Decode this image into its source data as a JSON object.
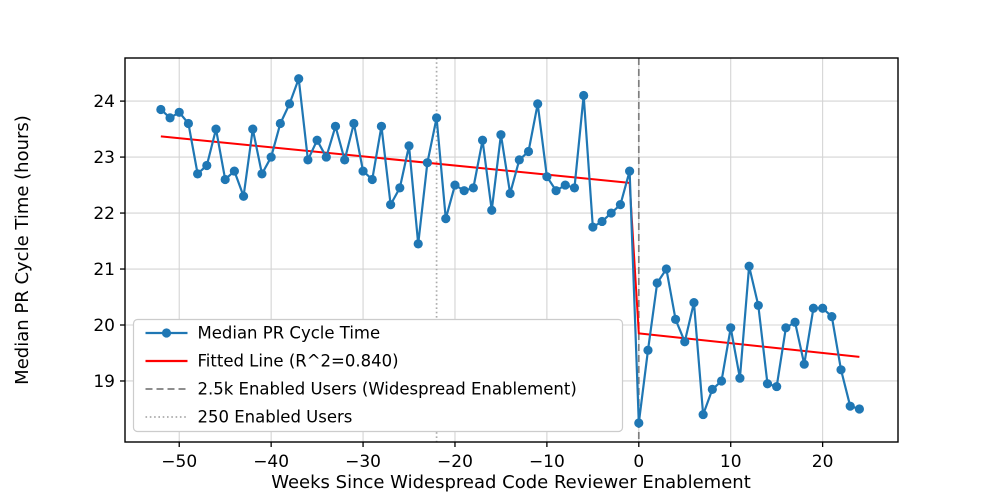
{
  "figure": {
    "background": "#ffffff",
    "title": ""
  },
  "chart_data": {
    "type": "line",
    "title": "",
    "xlabel": "Weeks Since Widespread Code Reviewer Enablement",
    "ylabel": "Median PR Cycle Time (hours)",
    "xlim": [
      -55.9,
      28.2
    ],
    "ylim": [
      17.91,
      24.77
    ],
    "x_ticks": [
      -50,
      -40,
      -30,
      -20,
      -10,
      0,
      10,
      20
    ],
    "x_tick_labels": [
      "−50",
      "−40",
      "−30",
      "−20",
      "−10",
      "0",
      "10",
      "20"
    ],
    "y_ticks": [
      19,
      20,
      21,
      22,
      23,
      24
    ],
    "y_tick_labels": [
      "19",
      "20",
      "21",
      "22",
      "23",
      "24"
    ],
    "grid": true,
    "grid_color": "#d4d4d4",
    "series": [
      {
        "name": "Median PR Cycle Time",
        "color": "#1f77b4",
        "marker": "circle",
        "linewidth": 2.2,
        "x": [
          -52,
          -51,
          -50,
          -49,
          -48,
          -47,
          -46,
          -45,
          -44,
          -43,
          -42,
          -41,
          -40,
          -39,
          -38,
          -37,
          -36,
          -35,
          -34,
          -33,
          -32,
          -31,
          -30,
          -29,
          -28,
          -27,
          -26,
          -25,
          -24,
          -23,
          -22,
          -21,
          -20,
          -19,
          -18,
          -17,
          -16,
          -15,
          -14,
          -13,
          -12,
          -11,
          -10,
          -9,
          -8,
          -7,
          -6,
          -5,
          -4,
          -3,
          -2,
          -1,
          0,
          1,
          2,
          3,
          4,
          5,
          6,
          7,
          8,
          9,
          10,
          11,
          12,
          13,
          14,
          15,
          16,
          17,
          18,
          19,
          20,
          21,
          22,
          23,
          24
        ],
        "values": [
          23.85,
          23.7,
          23.8,
          23.6,
          22.7,
          22.85,
          23.5,
          22.6,
          22.75,
          22.3,
          23.5,
          22.7,
          23.0,
          23.6,
          23.95,
          24.4,
          22.95,
          23.3,
          23.0,
          23.55,
          22.95,
          23.6,
          22.75,
          22.6,
          23.55,
          22.15,
          22.45,
          23.2,
          21.45,
          22.9,
          23.7,
          21.9,
          22.5,
          22.4,
          22.45,
          23.3,
          22.05,
          23.4,
          22.35,
          22.95,
          23.1,
          23.95,
          22.65,
          22.4,
          22.5,
          22.45,
          24.1,
          21.75,
          21.85,
          22.0,
          22.15,
          22.75,
          18.25,
          19.55,
          20.75,
          21.0,
          20.1,
          19.7,
          20.4,
          18.4,
          18.85,
          19.0,
          19.95,
          19.05,
          21.05,
          20.35,
          18.95,
          18.9,
          19.95,
          20.05,
          19.3,
          20.3,
          20.3,
          20.15,
          19.2,
          18.55,
          18.5
        ]
      },
      {
        "name": "Fitted Line (R^2=0.840)",
        "color": "#ff0000",
        "marker": "none",
        "linewidth": 2.0,
        "x": [
          -52,
          -1,
          0,
          24
        ],
        "values": [
          23.37,
          22.54,
          19.85,
          19.43
        ]
      }
    ],
    "vlines": [
      {
        "label": "2.5k Enabled Users (Widespread Enablement)",
        "x": 0,
        "style": "dashed",
        "color": "#7f7f7f"
      },
      {
        "label": "250 Enabled Users",
        "x": -22,
        "style": "dotted",
        "color": "#ababab"
      }
    ],
    "legend": {
      "position": "lower-left",
      "items": [
        {
          "label": "Median PR Cycle Time",
          "swatch": "line-marker",
          "color": "#1f77b4"
        },
        {
          "label": "Fitted Line (R^2=0.840)",
          "swatch": "line",
          "color": "#ff0000"
        },
        {
          "label": "2.5k Enabled Users (Widespread Enablement)",
          "swatch": "dashed",
          "color": "#7f7f7f"
        },
        {
          "label": "250 Enabled Users",
          "swatch": "dotted",
          "color": "#ababab"
        }
      ]
    }
  }
}
